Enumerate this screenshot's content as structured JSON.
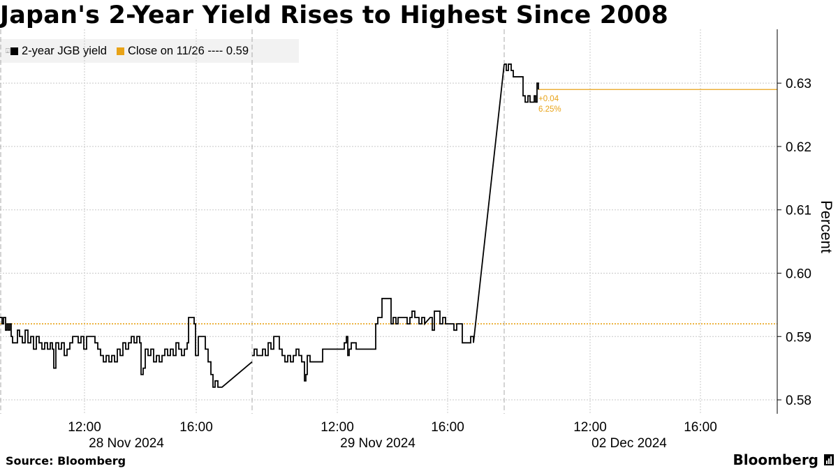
{
  "title": "Japan's 2-Year Yield Rises to Highest Since 2008",
  "legend": {
    "series_label": "2-year JGB yield",
    "close_label": "Close on 11/26 ---- 0.59",
    "series_color": "#000000",
    "close_color": "#e8a317"
  },
  "annotation": {
    "change": "+0.04",
    "pct": "6.25%"
  },
  "footer": {
    "source": "Source: Bloomberg",
    "brand": "Bloomberg"
  },
  "chart_data": {
    "type": "line",
    "title": "Japan's 2-Year Yield Rises to Highest Since 2008",
    "ylabel": "Percent",
    "ylim": [
      0.5778,
      0.6385
    ],
    "yticks": [
      0.58,
      0.59,
      0.6,
      0.61,
      0.62,
      0.63
    ],
    "ytick_labels": [
      "0.58",
      "0.59",
      "0.60",
      "0.61",
      "0.62",
      "0.63"
    ],
    "x_axis": "trading hours (compressed), 27 Nov 2024 evening to 02 Dec 2024",
    "x_time_ticks": [
      "12:00",
      "16:00",
      "12:00",
      "16:00",
      "12:00",
      "16:00"
    ],
    "x_date_labels": [
      "28 Nov 2024",
      "29 Nov 2024",
      "02 Dec 2024"
    ],
    "reference_line": {
      "label": "Close on 11/26",
      "value": 0.592
    },
    "last_value_line": 0.629,
    "series": [
      {
        "name": "2-year JGB yield",
        "segments": [
          [
            [
              0,
              0.593
            ],
            [
              3,
              0.592
            ],
            [
              5,
              0.593
            ],
            [
              8,
              0.591
            ],
            [
              10,
              0.592
            ],
            [
              12,
              0.591
            ],
            [
              14,
              0.592
            ],
            [
              16,
              0.59
            ],
            [
              18,
              0.589
            ],
            [
              22,
              0.589
            ],
            [
              25,
              0.591
            ],
            [
              28,
              0.59
            ],
            [
              32,
              0.589
            ],
            [
              36,
              0.591
            ],
            [
              40,
              0.589
            ],
            [
              44,
              0.59
            ],
            [
              48,
              0.588
            ],
            [
              52,
              0.59
            ],
            [
              56,
              0.589
            ],
            [
              60,
              0.588
            ],
            [
              64,
              0.589
            ],
            [
              68,
              0.588
            ],
            [
              72,
              0.589
            ],
            [
              75,
              0.588
            ],
            [
              77,
              0.585
            ],
            [
              80,
              0.589
            ],
            [
              84,
              0.588
            ],
            [
              88,
              0.589
            ],
            [
              92,
              0.587
            ],
            [
              96,
              0.588
            ],
            [
              100,
              0.589
            ],
            [
              104,
              0.59
            ],
            [
              108,
              0.59
            ],
            [
              112,
              0.589
            ],
            [
              116,
              0.59
            ],
            [
              120,
              0.588
            ],
            [
              124,
              0.59
            ],
            [
              128,
              0.59
            ],
            [
              132,
              0.59
            ],
            [
              136,
              0.589
            ],
            [
              140,
              0.588
            ],
            [
              144,
              0.587
            ],
            [
              148,
              0.586
            ],
            [
              152,
              0.587
            ],
            [
              156,
              0.586
            ],
            [
              160,
              0.587
            ],
            [
              164,
              0.586
            ],
            [
              168,
              0.588
            ],
            [
              172,
              0.587
            ],
            [
              176,
              0.589
            ],
            [
              180,
              0.588
            ],
            [
              184,
              0.589
            ],
            [
              188,
              0.59
            ],
            [
              192,
              0.589
            ],
            [
              196,
              0.59
            ],
            [
              200,
              0.589
            ],
            [
              202,
              0.584
            ],
            [
              205,
              0.585
            ],
            [
              208,
              0.588
            ],
            [
              212,
              0.587
            ],
            [
              216,
              0.588
            ],
            [
              220,
              0.586
            ],
            [
              224,
              0.587
            ],
            [
              228,
              0.586
            ],
            [
              232,
              0.587
            ],
            [
              236,
              0.588
            ],
            [
              240,
              0.587
            ],
            [
              244,
              0.588
            ],
            [
              248,
              0.587
            ],
            [
              252,
              0.589
            ],
            [
              256,
              0.588
            ],
            [
              260,
              0.587
            ],
            [
              264,
              0.588
            ],
            [
              268,
              0.589
            ],
            [
              270,
              0.593
            ],
            [
              275,
              0.593
            ],
            [
              278,
              0.592
            ],
            [
              280,
              0.587
            ],
            [
              284,
              0.59
            ],
            [
              290,
              0.59
            ],
            [
              294,
              0.588
            ],
            [
              298,
              0.586
            ],
            [
              302,
              0.584
            ],
            [
              305,
              0.582
            ],
            [
              308,
              0.583
            ],
            [
              312,
              0.582
            ],
            [
              318,
              0.582
            ],
            [
              361,
              0.586
            ]
          ],
          [
            [
              361,
              0.587
            ],
            [
              364,
              0.588
            ],
            [
              368,
              0.587
            ],
            [
              372,
              0.587
            ],
            [
              376,
              0.588
            ],
            [
              380,
              0.587
            ],
            [
              384,
              0.589
            ],
            [
              388,
              0.588
            ],
            [
              392,
              0.59
            ],
            [
              396,
              0.59
            ],
            [
              400,
              0.588
            ],
            [
              404,
              0.587
            ],
            [
              408,
              0.586
            ],
            [
              412,
              0.587
            ],
            [
              416,
              0.586
            ],
            [
              420,
              0.587
            ],
            [
              424,
              0.588
            ],
            [
              428,
              0.587
            ],
            [
              432,
              0.586
            ],
            [
              436,
              0.583
            ],
            [
              438,
              0.584
            ],
            [
              440,
              0.587
            ],
            [
              444,
              0.586
            ],
            [
              460,
              0.586
            ],
            [
              462,
              0.588
            ],
            [
              490,
              0.588
            ],
            [
              493,
              0.589
            ],
            [
              496,
              0.59
            ],
            [
              498,
              0.587
            ],
            [
              500,
              0.588
            ],
            [
              503,
              0.589
            ],
            [
              506,
              0.589
            ],
            [
              510,
              0.588
            ],
            [
              536,
              0.588
            ],
            [
              538,
              0.592
            ],
            [
              541,
              0.593
            ],
            [
              545,
              0.593
            ],
            [
              547,
              0.596
            ],
            [
              558,
              0.596
            ],
            [
              560,
              0.592
            ],
            [
              563,
              0.593
            ],
            [
              567,
              0.592
            ],
            [
              570,
              0.593
            ],
            [
              580,
              0.593
            ],
            [
              583,
              0.592
            ],
            [
              587,
              0.593
            ],
            [
              590,
              0.594
            ],
            [
              594,
              0.593
            ],
            [
              600,
              0.592
            ],
            [
              604,
              0.593
            ],
            [
              608,
              0.592
            ],
            [
              616,
              0.593
            ],
            [
              619,
              0.591
            ],
            [
              622,
              0.594
            ],
            [
              627,
              0.594
            ],
            [
              630,
              0.592
            ],
            [
              634,
              0.593
            ],
            [
              638,
              0.592
            ],
            [
              646,
              0.592
            ],
            [
              650,
              0.591
            ],
            [
              654,
              0.592
            ],
            [
              660,
              0.592
            ],
            [
              662,
              0.589
            ],
            [
              670,
              0.589
            ],
            [
              674,
              0.59
            ],
            [
              678,
              0.589
            ],
            [
              722,
              0.633
            ]
          ],
          [
            [
              722,
              0.633
            ],
            [
              725,
              0.632
            ],
            [
              728,
              0.633
            ],
            [
              732,
              0.632
            ],
            [
              735,
              0.631
            ],
            [
              745,
              0.631
            ],
            [
              749,
              0.628
            ],
            [
              752,
              0.627
            ],
            [
              756,
              0.628
            ],
            [
              759,
              0.627
            ],
            [
              762,
              0.627
            ],
            [
              765,
              0.628
            ],
            [
              767,
              0.627
            ],
            [
              769,
              0.63
            ],
            [
              771,
              0.629
            ]
          ]
        ]
      }
    ]
  }
}
